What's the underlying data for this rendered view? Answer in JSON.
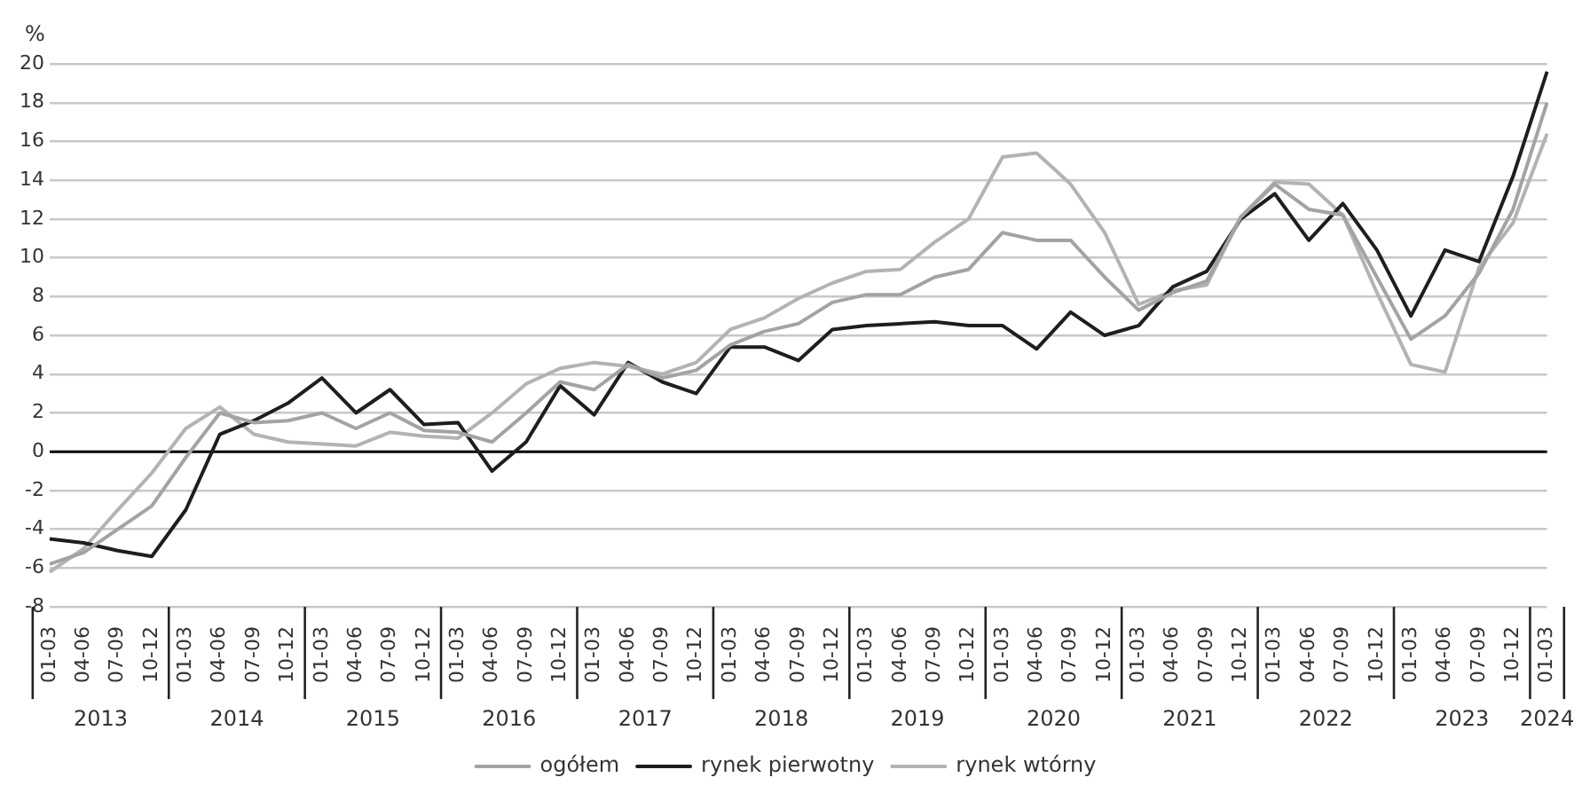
{
  "chart_data": {
    "type": "line",
    "ylabel": "%",
    "categories": [
      "01-03",
      "04-06",
      "07-09",
      "10-12",
      "01-03",
      "04-06",
      "07-09",
      "10-12",
      "01-03",
      "04-06",
      "07-09",
      "10-12",
      "01-03",
      "04-06",
      "07-09",
      "10-12",
      "01-03",
      "04-06",
      "07-09",
      "10-12",
      "01-03",
      "04-06",
      "07-09",
      "10-12",
      "01-03",
      "04-06",
      "07-09",
      "10-12",
      "01-03",
      "04-06",
      "07-09",
      "10-12",
      "01-03",
      "04-06",
      "07-09",
      "10-12",
      "01-03",
      "04-06",
      "07-09",
      "10-12",
      "01-03",
      "04-06",
      "07-09",
      "10-12",
      "01-03"
    ],
    "annotations": [
      "2013",
      "2014",
      "2015",
      "2016",
      "2017",
      "2018",
      "2019",
      "2020",
      "2021",
      "2022",
      "2023",
      "2024"
    ],
    "series": [
      {
        "name": "ogółem",
        "color": "#a3a3a3",
        "values": [
          -5.8,
          -5.2,
          -4.0,
          -2.8,
          -0.3,
          2.0,
          1.5,
          1.6,
          2.0,
          1.2,
          2.0,
          1.1,
          1.0,
          0.5,
          2.0,
          3.6,
          3.2,
          4.5,
          3.8,
          4.2,
          5.5,
          6.2,
          6.6,
          7.7,
          8.1,
          8.1,
          9.0,
          9.4,
          11.3,
          10.9,
          10.9,
          9.0,
          7.3,
          8.2,
          8.8,
          12.1,
          13.8,
          12.5,
          12.2,
          9.0,
          5.8,
          7.0,
          9.2,
          12.5,
          18.0
        ]
      },
      {
        "name": "rynek pierwotny",
        "color": "#1e1e1e",
        "values": [
          -4.5,
          -4.7,
          -5.1,
          -5.4,
          -3.0,
          0.9,
          1.6,
          2.5,
          3.8,
          2.0,
          3.2,
          1.4,
          1.5,
          -1.0,
          0.5,
          3.4,
          1.9,
          4.6,
          3.6,
          3.0,
          5.4,
          5.4,
          4.7,
          6.3,
          6.5,
          6.6,
          6.7,
          6.5,
          6.5,
          5.3,
          7.2,
          6.0,
          6.5,
          8.5,
          9.3,
          12.0,
          13.3,
          10.9,
          12.8,
          10.4,
          7.0,
          10.4,
          9.8,
          14.2,
          19.6
        ]
      },
      {
        "name": "rynek wtórny",
        "color": "#b3b3b3",
        "values": [
          -6.2,
          -5.0,
          -3.0,
          -1.1,
          1.2,
          2.3,
          0.9,
          0.5,
          0.4,
          0.3,
          1.0,
          0.8,
          0.7,
          2.0,
          3.5,
          4.3,
          4.6,
          4.4,
          4.0,
          4.6,
          6.3,
          6.9,
          7.9,
          8.7,
          9.3,
          9.4,
          10.8,
          12.0,
          15.2,
          15.4,
          13.8,
          11.3,
          7.6,
          8.3,
          8.6,
          12.1,
          13.9,
          13.8,
          12.2,
          8.2,
          4.5,
          4.1,
          9.5,
          11.8,
          16.4
        ]
      }
    ],
    "ylim": [
      -8,
      20
    ],
    "yticks": [
      -8,
      -6,
      -4,
      -2,
      0,
      2,
      4,
      6,
      8,
      10,
      12,
      14,
      16,
      18,
      20
    ],
    "ref_lines": [
      {
        "axis": "y",
        "value": 0,
        "color": "#000000"
      }
    ],
    "grid": "y",
    "legend": "bottom",
    "marker": "none",
    "line_style": "solid"
  }
}
